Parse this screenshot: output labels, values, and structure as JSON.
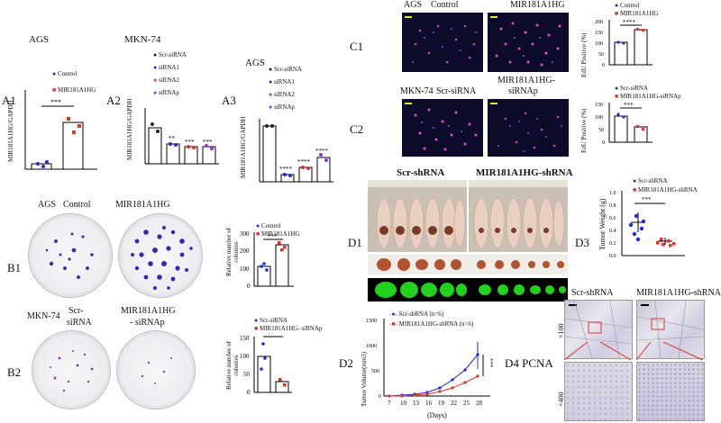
{
  "A1": {
    "label": "A1",
    "cell": "AGS",
    "ylabel": "MIR181A1HG/GAPDH",
    "legend": [
      "Control",
      "MIR181A1HG"
    ],
    "sig": "***"
  },
  "A2": {
    "label": "A2",
    "cell": "MKN-74",
    "ylabel": "MIR181A1HG/GAPDH",
    "legend": [
      "Scr-siRNA",
      "siRNA1",
      "siRNA2",
      "siRNAp"
    ],
    "sigs": [
      "**",
      "***",
      "***"
    ]
  },
  "A3": {
    "label": "A3",
    "cell": "AGS",
    "ylabel": "MIR181A1HG/GAPDH",
    "legend": [
      "Scr-siRNA",
      "siRNA1",
      "siRNA2",
      "siRNAp"
    ],
    "sigs": [
      "****",
      "****",
      "****"
    ]
  },
  "B1": {
    "label": "B1",
    "cell": "AGS",
    "cond1": "Control",
    "cond2": "MIR181A1HG",
    "ylabel": "Relative number of colonies",
    "legend": [
      "Control",
      "MIR181A1HG"
    ],
    "sig": "***",
    "ticks": [
      "300",
      "200",
      "100",
      "0"
    ]
  },
  "B2": {
    "label": "B2",
    "cell": "MKN-74",
    "cond1a": "Scr-",
    "cond1b": "siRNA",
    "cond2a": "MIR181A1HG",
    "cond2b": "- siRNAp",
    "ylabel": "Relative number of colonies",
    "legend": [
      "Scr-siRNA",
      "MIR181A1HG- siRNAp"
    ],
    "sig": "**",
    "ticks": [
      "150",
      "100",
      "50",
      "0"
    ]
  },
  "C1": {
    "label": "C1",
    "cell": "AGS",
    "cond1": "Control",
    "cond2": "MIR181A1HG",
    "ylabel": "EdU Positive (%)",
    "legend": [
      "Control",
      "MIR181A1HG"
    ],
    "sig": "****",
    "ticks": [
      "200",
      "150",
      "100",
      "50",
      "0"
    ]
  },
  "C2": {
    "label": "C2",
    "cell": "MKN-74",
    "cond1": "Scr-siRNA",
    "cond2a": "MIR181A1HG-",
    "cond2b": "siRNAp",
    "ylabel": "EdU Positive (%)",
    "legend": [
      "Scr-siRNA",
      "MIR181A1HG-siRNAp"
    ],
    "sig": "***",
    "ticks": [
      "150",
      "100",
      "50",
      "0"
    ]
  },
  "D1": {
    "label": "D1",
    "group1": "Scr-shRNA",
    "group2": "MIR181A1HG-shRNA"
  },
  "D2": {
    "label": "D2",
    "ylabel": "Tumor Volume(mm3)",
    "xlabel": "(Days)",
    "legend": [
      "Scr-shRNA (n=6)",
      "MIR181A1HG-shRNA (n=6)"
    ],
    "sig": "***",
    "xticks": [
      "7",
      "10",
      "13",
      "16",
      "19",
      "22",
      "25",
      "28"
    ],
    "yticks": [
      "1500",
      "1000",
      "500",
      "0"
    ]
  },
  "D3": {
    "label": "D3",
    "ylabel": "Tumor Weight (g)",
    "legend": [
      "Scr-shRNA",
      "MIR181A1HG-shRNA"
    ],
    "sig": "***",
    "ticks": [
      "1.0",
      "0.8",
      "0.6",
      "0.4",
      "0.2",
      "0.0"
    ]
  },
  "D4": {
    "label": "D4",
    "stain": "PCNA",
    "col1": "Scr-shRNA",
    "col2": "MIR181A1HG-shRNA",
    "row1": "×100",
    "row2": "×400"
  },
  "colors": {
    "blue": "#1f2bd6",
    "red": "#e0332e",
    "green": "#22d11c"
  },
  "chart_data": [
    {
      "type": "bar",
      "panel": "A1",
      "categories": [
        "Control",
        "MIR181A1HG"
      ],
      "values": [
        1.0,
        5.5
      ]
    },
    {
      "type": "bar",
      "panel": "A2",
      "categories": [
        "Scr-siRNA",
        "siRNA1",
        "siRNA2",
        "siRNAp"
      ],
      "values": [
        1.0,
        0.55,
        0.47,
        0.47
      ]
    },
    {
      "type": "bar",
      "panel": "A3",
      "categories": [
        "Scr-siRNA",
        "siRNA1",
        "siRNA2",
        "siRNAp"
      ],
      "values": [
        1.0,
        0.12,
        0.25,
        0.43
      ]
    },
    {
      "type": "bar",
      "panel": "B1",
      "categories": [
        "Control",
        "MIR181A1HG"
      ],
      "values": [
        110,
        230
      ],
      "ylim": [
        0,
        300
      ]
    },
    {
      "type": "bar",
      "panel": "B2",
      "categories": [
        "Scr-siRNA",
        "MIR181A1HG- siRNAp"
      ],
      "values": [
        100,
        30
      ],
      "ylim": [
        0,
        150
      ]
    },
    {
      "type": "bar",
      "panel": "C1",
      "categories": [
        "Control",
        "MIR181A1HG"
      ],
      "values": [
        100,
        155
      ],
      "ylim": [
        0,
        200
      ]
    },
    {
      "type": "bar",
      "panel": "C2",
      "categories": [
        "Scr-siRNA",
        "MIR181A1HG-siRNAp"
      ],
      "values": [
        100,
        60
      ],
      "ylim": [
        0,
        150
      ]
    },
    {
      "type": "line",
      "panel": "D2",
      "x": [
        7,
        10,
        13,
        16,
        19,
        22,
        25,
        28
      ],
      "series": [
        {
          "name": "Scr-shRNA (n=6)",
          "values": [
            0,
            10,
            30,
            80,
            170,
            320,
            520,
            830
          ]
        },
        {
          "name": "MIR181A1HG-shRNA (n=6)",
          "values": [
            0,
            5,
            15,
            40,
            90,
            170,
            270,
            400
          ]
        }
      ],
      "ylim": [
        0,
        1500
      ]
    },
    {
      "type": "scatter",
      "panel": "D3",
      "categories": [
        "Scr-shRNA",
        "MIR181A1HG-shRNA"
      ],
      "values": [
        0.52,
        0.23
      ],
      "ylim": [
        0,
        1.0
      ]
    }
  ]
}
